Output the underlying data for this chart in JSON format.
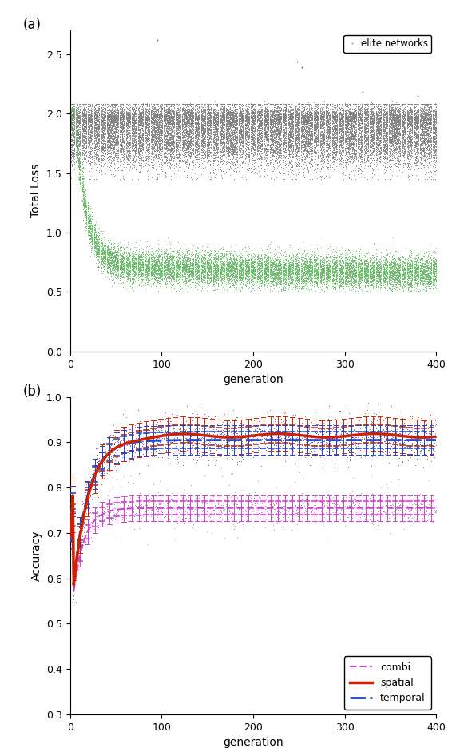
{
  "fig_width": 5.66,
  "fig_height": 9.46,
  "panel_a": {
    "xlabel": "generation",
    "ylabel": "Total Loss",
    "xlim": [
      0,
      400
    ],
    "ylim": [
      0,
      2.7
    ],
    "yticks": [
      0,
      0.5,
      1,
      1.5,
      2,
      2.5
    ],
    "xticks": [
      0,
      100,
      200,
      300,
      400
    ],
    "n_generations": 400,
    "pop_color": "#808080",
    "elite_color": "#66bb66",
    "legend_label": "elite networks"
  },
  "panel_b": {
    "xlabel": "generation",
    "ylabel": "Accuracy",
    "xlim": [
      0,
      400
    ],
    "ylim": [
      0.3,
      1.0
    ],
    "yticks": [
      0.3,
      0.4,
      0.5,
      0.6,
      0.7,
      0.8,
      0.9,
      1.0
    ],
    "xticks": [
      0,
      100,
      200,
      300,
      400
    ],
    "combi_color": "#cc44cc",
    "spatial_color": "#cc2200",
    "temporal_color": "#2244cc",
    "combi_mean_final": 0.755,
    "spatial_mean_final": 0.915,
    "temporal_mean_final": 0.905
  }
}
